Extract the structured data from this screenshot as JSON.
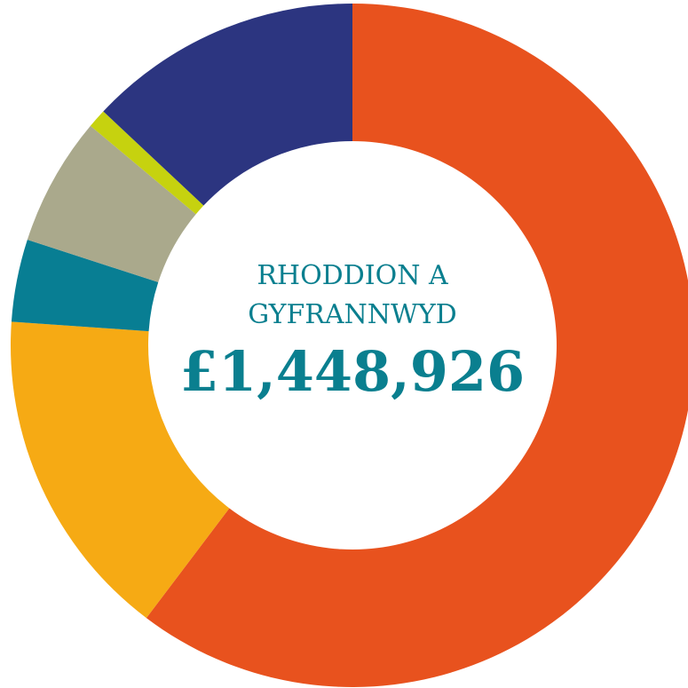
{
  "chart_data": {
    "type": "donut",
    "values": [
      60.3,
      15.8,
      3.9,
      6.1,
      0.9,
      13.0
    ],
    "colors": [
      "#e8521e",
      "#f6aa14",
      "#087e93",
      "#aaa98c",
      "#c6d20f",
      "#2c3580"
    ],
    "center_label": [
      "RHODDION A",
      "GYFRANNWYD"
    ],
    "center_value": {
      "value": 1448926,
      "label": "£1,448,926"
    }
  }
}
